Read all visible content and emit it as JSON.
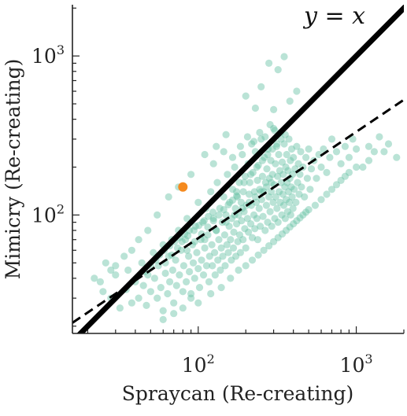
{
  "chart_data": {
    "type": "scatter",
    "title": "",
    "xlabel": "Spraycan (Re-creating)",
    "ylabel": "Mimicry (Re-creating)",
    "xscale": "log",
    "yscale": "log",
    "xlim": [
      16,
      2000
    ],
    "ylim": [
      18,
      2100
    ],
    "x_ticks": [
      {
        "value": 100,
        "base": "10",
        "exp": "2"
      },
      {
        "value": 1000,
        "base": "10",
        "exp": "3"
      }
    ],
    "y_ticks": [
      {
        "value": 100,
        "base": "10",
        "exp": "2"
      },
      {
        "value": 1000,
        "base": "10",
        "exp": "3"
      }
    ],
    "grid": false,
    "annotation": "y = x",
    "colors": {
      "points": "#66c2a5",
      "highlight": "#f58a1f",
      "lines": "#000000",
      "axes": "#222222"
    },
    "reference_line": {
      "name": "y = x",
      "slope": 1,
      "intercept": 0,
      "style": "solid"
    },
    "fit_line": {
      "style": "dashed",
      "x": [
        16,
        2000
      ],
      "y": [
        21,
        530
      ]
    },
    "highlight_point": {
      "x": 80,
      "y": 150
    },
    "points": [
      [
        22,
        40
      ],
      [
        25,
        33
      ],
      [
        28,
        30
      ],
      [
        30,
        42
      ],
      [
        32,
        26
      ],
      [
        35,
        34
      ],
      [
        36,
        45
      ],
      [
        38,
        28
      ],
      [
        40,
        38
      ],
      [
        42,
        30
      ],
      [
        44,
        50
      ],
      [
        45,
        36
      ],
      [
        47,
        27
      ],
      [
        48,
        42
      ],
      [
        50,
        33
      ],
      [
        52,
        58
      ],
      [
        53,
        40
      ],
      [
        55,
        30
      ],
      [
        56,
        48
      ],
      [
        58,
        35
      ],
      [
        60,
        65
      ],
      [
        60,
        25
      ],
      [
        62,
        43
      ],
      [
        64,
        32
      ],
      [
        65,
        55
      ],
      [
        66,
        38
      ],
      [
        68,
        70
      ],
      [
        69,
        45
      ],
      [
        70,
        28
      ],
      [
        72,
        52
      ],
      [
        73,
        36
      ],
      [
        75,
        80
      ],
      [
        76,
        42
      ],
      [
        78,
        60
      ],
      [
        80,
        33
      ],
      [
        81,
        48
      ],
      [
        83,
        70
      ],
      [
        84,
        38
      ],
      [
        85,
        95
      ],
      [
        87,
        55
      ],
      [
        88,
        44
      ],
      [
        90,
        30
      ],
      [
        92,
        65
      ],
      [
        93,
        50
      ],
      [
        95,
        40
      ],
      [
        96,
        85
      ],
      [
        98,
        58
      ],
      [
        100,
        46
      ],
      [
        100,
        120
      ],
      [
        102,
        35
      ],
      [
        104,
        70
      ],
      [
        105,
        52
      ],
      [
        107,
        90
      ],
      [
        108,
        42
      ],
      [
        110,
        62
      ],
      [
        112,
        110
      ],
      [
        113,
        48
      ],
      [
        115,
        75
      ],
      [
        117,
        38
      ],
      [
        118,
        55
      ],
      [
        120,
        140
      ],
      [
        122,
        65
      ],
      [
        123,
        48
      ],
      [
        125,
        95
      ],
      [
        127,
        58
      ],
      [
        128,
        42
      ],
      [
        130,
        80
      ],
      [
        132,
        160
      ],
      [
        133,
        52
      ],
      [
        135,
        70
      ],
      [
        137,
        110
      ],
      [
        138,
        45
      ],
      [
        140,
        62
      ],
      [
        142,
        90
      ],
      [
        143,
        55
      ],
      [
        145,
        130
      ],
      [
        147,
        75
      ],
      [
        148,
        48
      ],
      [
        150,
        100
      ],
      [
        152,
        65
      ],
      [
        153,
        180
      ],
      [
        155,
        58
      ],
      [
        157,
        85
      ],
      [
        158,
        120
      ],
      [
        160,
        70
      ],
      [
        162,
        52
      ],
      [
        163,
        95
      ],
      [
        165,
        145
      ],
      [
        167,
        62
      ],
      [
        168,
        78
      ],
      [
        170,
        200
      ],
      [
        172,
        110
      ],
      [
        173,
        55
      ],
      [
        175,
        88
      ],
      [
        177,
        130
      ],
      [
        178,
        68
      ],
      [
        180,
        100
      ],
      [
        182,
        160
      ],
      [
        183,
        75
      ],
      [
        185,
        58
      ],
      [
        187,
        120
      ],
      [
        188,
        92
      ],
      [
        190,
        240
      ],
      [
        192,
        70
      ],
      [
        193,
        140
      ],
      [
        195,
        105
      ],
      [
        197,
        82
      ],
      [
        198,
        175
      ],
      [
        200,
        62
      ],
      [
        202,
        115
      ],
      [
        205,
        95
      ],
      [
        207,
        210
      ],
      [
        208,
        78
      ],
      [
        210,
        135
      ],
      [
        212,
        160
      ],
      [
        215,
        88
      ],
      [
        217,
        115
      ],
      [
        218,
        280
      ],
      [
        220,
        72
      ],
      [
        222,
        185
      ],
      [
        225,
        100
      ],
      [
        227,
        140
      ],
      [
        228,
        82
      ],
      [
        230,
        250
      ],
      [
        233,
        120
      ],
      [
        235,
        95
      ],
      [
        237,
        165
      ],
      [
        238,
        70
      ],
      [
        240,
        205
      ],
      [
        243,
        110
      ],
      [
        245,
        145
      ],
      [
        247,
        85
      ],
      [
        250,
        300
      ],
      [
        252,
        125
      ],
      [
        255,
        175
      ],
      [
        257,
        98
      ],
      [
        260,
        140
      ],
      [
        262,
        230
      ],
      [
        265,
        80
      ],
      [
        267,
        160
      ],
      [
        270,
        115
      ],
      [
        272,
        195
      ],
      [
        275,
        90
      ],
      [
        277,
        260
      ],
      [
        280,
        130
      ],
      [
        282,
        170
      ],
      [
        285,
        105
      ],
      [
        288,
        220
      ],
      [
        290,
        140
      ],
      [
        292,
        85
      ],
      [
        295,
        180
      ],
      [
        298,
        120
      ],
      [
        300,
        350
      ],
      [
        302,
        155
      ],
      [
        305,
        95
      ],
      [
        308,
        210
      ],
      [
        310,
        130
      ],
      [
        313,
        270
      ],
      [
        315,
        110
      ],
      [
        318,
        175
      ],
      [
        320,
        90
      ],
      [
        323,
        240
      ],
      [
        325,
        140
      ],
      [
        328,
        190
      ],
      [
        330,
        120
      ],
      [
        333,
        330
      ],
      [
        335,
        160
      ],
      [
        338,
        100
      ],
      [
        340,
        215
      ],
      [
        343,
        135
      ],
      [
        345,
        180
      ],
      [
        348,
        115
      ],
      [
        350,
        280
      ],
      [
        353,
        150
      ],
      [
        355,
        95
      ],
      [
        358,
        200
      ],
      [
        360,
        125
      ],
      [
        363,
        240
      ],
      [
        365,
        160
      ],
      [
        368,
        105
      ],
      [
        370,
        190
      ],
      [
        373,
        140
      ],
      [
        375,
        300
      ],
      [
        378,
        120
      ],
      [
        380,
        170
      ],
      [
        383,
        220
      ],
      [
        385,
        100
      ],
      [
        388,
        150
      ],
      [
        390,
        260
      ],
      [
        393,
        130
      ],
      [
        395,
        180
      ],
      [
        398,
        110
      ],
      [
        400,
        230
      ],
      [
        405,
        145
      ],
      [
        410,
        195
      ],
      [
        415,
        120
      ],
      [
        420,
        270
      ],
      [
        425,
        160
      ],
      [
        430,
        210
      ],
      [
        435,
        135
      ],
      [
        440,
        180
      ],
      [
        445,
        250
      ],
      [
        450,
        150
      ],
      [
        460,
        200
      ],
      [
        470,
        130
      ],
      [
        480,
        230
      ],
      [
        490,
        170
      ],
      [
        500,
        260
      ],
      [
        510,
        145
      ],
      [
        520,
        195
      ],
      [
        540,
        220
      ],
      [
        560,
        170
      ],
      [
        580,
        240
      ],
      [
        600,
        200
      ],
      [
        620,
        260
      ],
      [
        650,
        185
      ],
      [
        680,
        230
      ],
      [
        700,
        300
      ],
      [
        750,
        250
      ],
      [
        800,
        210
      ],
      [
        850,
        270
      ],
      [
        900,
        230
      ],
      [
        950,
        300
      ],
      [
        1000,
        260
      ],
      [
        1100,
        200
      ],
      [
        1200,
        270
      ],
      [
        1300,
        250
      ],
      [
        1400,
        310
      ],
      [
        1600,
        280
      ],
      [
        1800,
        230
      ],
      [
        280,
        900
      ],
      [
        320,
        820
      ],
      [
        350,
        990
      ],
      [
        250,
        640
      ],
      [
        200,
        560
      ],
      [
        300,
        460
      ],
      [
        420,
        600
      ],
      [
        380,
        520
      ],
      [
        230,
        470
      ],
      [
        150,
        320
      ],
      [
        130,
        270
      ],
      [
        110,
        240
      ],
      [
        90,
        180
      ],
      [
        75,
        150
      ],
      [
        65,
        130
      ],
      [
        55,
        100
      ],
      [
        48,
        80
      ],
      [
        42,
        70
      ],
      [
        38,
        60
      ],
      [
        34,
        55
      ],
      [
        30,
        48
      ],
      [
        28,
        45
      ],
      [
        26,
        50
      ],
      [
        24,
        38
      ],
      [
        60,
        22
      ],
      [
        70,
        24
      ],
      [
        80,
        26
      ],
      [
        90,
        32
      ],
      [
        100,
        28
      ],
      [
        120,
        32
      ],
      [
        140,
        35
      ],
      [
        160,
        40
      ],
      [
        180,
        45
      ],
      [
        200,
        48
      ],
      [
        220,
        52
      ],
      [
        240,
        56
      ],
      [
        260,
        60
      ],
      [
        280,
        64
      ],
      [
        300,
        68
      ],
      [
        320,
        72
      ],
      [
        340,
        76
      ],
      [
        360,
        80
      ],
      [
        380,
        84
      ],
      [
        400,
        88
      ],
      [
        420,
        92
      ],
      [
        440,
        96
      ],
      [
        460,
        100
      ],
      [
        480,
        104
      ],
      [
        500,
        108
      ],
      [
        550,
        115
      ],
      [
        600,
        125
      ],
      [
        650,
        135
      ],
      [
        700,
        145
      ],
      [
        750,
        155
      ],
      [
        800,
        165
      ],
      [
        850,
        175
      ],
      [
        900,
        185
      ],
      [
        1000,
        200
      ],
      [
        1200,
        220
      ],
      [
        1500,
        250
      ],
      [
        125,
        210
      ],
      [
        145,
        250
      ],
      [
        165,
        230
      ],
      [
        185,
        270
      ],
      [
        205,
        310
      ],
      [
        225,
        290
      ],
      [
        245,
        330
      ],
      [
        265,
        310
      ],
      [
        285,
        370
      ],
      [
        305,
        340
      ],
      [
        175,
        140
      ],
      [
        195,
        160
      ],
      [
        215,
        180
      ],
      [
        235,
        200
      ],
      [
        255,
        220
      ],
      [
        275,
        240
      ],
      [
        295,
        260
      ],
      [
        315,
        280
      ],
      [
        335,
        300
      ],
      [
        355,
        320
      ],
      [
        110,
        70
      ],
      [
        130,
        80
      ],
      [
        150,
        90
      ],
      [
        170,
        100
      ],
      [
        190,
        110
      ],
      [
        210,
        120
      ],
      [
        230,
        130
      ],
      [
        250,
        140
      ],
      [
        270,
        150
      ],
      [
        290,
        160
      ],
      [
        85,
        60
      ],
      [
        95,
        68
      ],
      [
        105,
        76
      ],
      [
        115,
        84
      ],
      [
        125,
        92
      ],
      [
        135,
        100
      ],
      [
        145,
        108
      ],
      [
        155,
        116
      ],
      [
        165,
        124
      ],
      [
        175,
        132
      ],
      [
        62,
        50
      ],
      [
        68,
        56
      ],
      [
        74,
        62
      ],
      [
        79,
        68
      ],
      [
        86,
        74
      ],
      [
        94,
        80
      ],
      [
        101,
        86
      ],
      [
        109,
        92
      ],
      [
        116,
        98
      ],
      [
        124,
        104
      ],
      [
        46,
        44
      ],
      [
        50,
        48
      ],
      [
        54,
        52
      ],
      [
        57,
        56
      ],
      [
        61,
        60
      ],
      [
        66,
        64
      ],
      [
        71,
        68
      ],
      [
        76,
        72
      ],
      [
        82,
        76
      ],
      [
        88,
        80
      ]
    ]
  }
}
